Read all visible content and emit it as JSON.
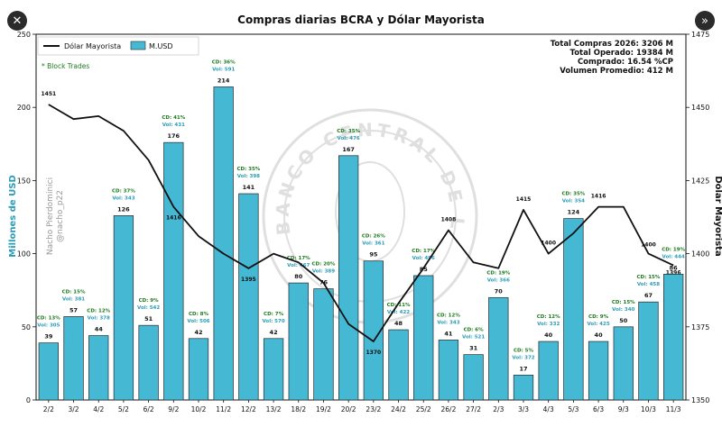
{
  "window": {
    "close_glyph": "✕",
    "expand_glyph": "»",
    "close_icon": "close-icon",
    "expand_icon": "expand-icon"
  },
  "chart_data": {
    "type": "bar",
    "title": "Compras diarias BCRA y Dólar Mayorista",
    "ylabel": "Millones de USD",
    "y2label": "Dólar Mayorista",
    "ylim": [
      0,
      250
    ],
    "y2lim": [
      1350,
      1475
    ],
    "yticks": [
      0,
      50,
      100,
      150,
      200,
      250
    ],
    "y2ticks": [
      1350,
      1375,
      1400,
      1425,
      1450,
      1475
    ],
    "grid": false,
    "legend": {
      "position": "top-left",
      "entries": [
        "Dólar Mayorista",
        "M.USD"
      ]
    },
    "block_trades_note": "* Block Trades",
    "summary": [
      "Total Compras 2026: 3206 M",
      "Total Operado: 19384 M",
      "Comprado: 16.54 %CP",
      "Volumen Promedio: 412 M"
    ],
    "watermark": [
      "Nacho Pierdominici",
      "@nacho_p22"
    ],
    "seal_text": "BANCO CENTRAL DE LA REPUBLICA ARGENTINA",
    "colors": {
      "bar_fill": "#45b8d4",
      "bar_stroke": "#2a2a2a",
      "line": "#111111",
      "cd_label": "#1f7a1f",
      "vol_label": "#2a9cb8",
      "ylabel": "#2a9cb8",
      "note": "#1f7a1f"
    },
    "categories": [
      "2/2",
      "3/2",
      "4/2",
      "5/2",
      "6/2",
      "9/2",
      "10/2",
      "11/2",
      "12/2",
      "13/2",
      "18/2",
      "19/2",
      "20/2",
      "23/2",
      "24/2",
      "25/2",
      "26/2",
      "27/2",
      "2/3",
      "3/3",
      "4/3",
      "5/3",
      "6/3",
      "9/3",
      "10/3",
      "11/3"
    ],
    "series": [
      {
        "name": "M.USD",
        "kind": "bar",
        "axis": "left",
        "values": [
          39,
          57,
          44,
          126,
          51,
          176,
          42,
          214,
          141,
          42,
          80,
          76,
          167,
          95,
          48,
          85,
          41,
          31,
          70,
          17,
          40,
          124,
          40,
          50,
          67,
          86
        ]
      },
      {
        "name": "Dólar Mayorista",
        "kind": "line",
        "axis": "right",
        "values": [
          1451,
          1446,
          1447,
          1442,
          1432,
          1416,
          1406,
          1400,
          1395,
          1400,
          1397,
          1390,
          1376,
          1370,
          1383,
          1395,
          1408,
          1397,
          1395,
          1415,
          1400,
          1407,
          1416,
          1416,
          1400,
          1396
        ]
      }
    ],
    "bar_cd_labels": [
      "CD: 13%",
      "CD: 15%",
      "CD: 12%",
      "CD: 37%",
      "CD: 9%",
      "CD: 41%",
      "CD: 8%",
      "CD: 36%",
      "CD: 35%",
      "CD: 7%",
      "CD: 17%",
      "CD: 20%",
      "CD: 35%",
      "CD: 26%",
      "CD: 11%",
      "CD: 17%",
      "CD: 12%",
      "CD: 6%",
      "CD: 19%",
      "CD: 5%",
      "CD: 12%",
      "CD: 35%",
      "CD: 9%",
      "CD: 15%",
      "CD: 15%",
      "CD: 19%"
    ],
    "bar_vol_labels": [
      "Vol: 305",
      "Vol: 381",
      "Vol: 378",
      "Vol: 343",
      "Vol: 542",
      "Vol: 431",
      "Vol: 506",
      "Vol: 591",
      "Vol: 398",
      "Vol: 570",
      "Vol: 467",
      "Vol: 389",
      "Vol: 476",
      "Vol: 361",
      "Vol: 422",
      "Vol: 496",
      "Vol: 343",
      "Vol: 521",
      "Vol: 366",
      "Vol: 372",
      "Vol: 332",
      "Vol: 354",
      "Vol: 425",
      "Vol: 340",
      "Vol: 458",
      "Vol: 444"
    ],
    "line_labels": [
      {
        "index": 0,
        "text": "1451"
      },
      {
        "index": 5,
        "text": "1416"
      },
      {
        "index": 8,
        "text": "1395"
      },
      {
        "index": 13,
        "text": "1370"
      },
      {
        "index": 16,
        "text": "1408"
      },
      {
        "index": 19,
        "text": "1415"
      },
      {
        "index": 20,
        "text": "1400"
      },
      {
        "index": 22,
        "text": "1416"
      },
      {
        "index": 24,
        "text": "1400"
      },
      {
        "index": 25,
        "text": "1396"
      }
    ]
  }
}
